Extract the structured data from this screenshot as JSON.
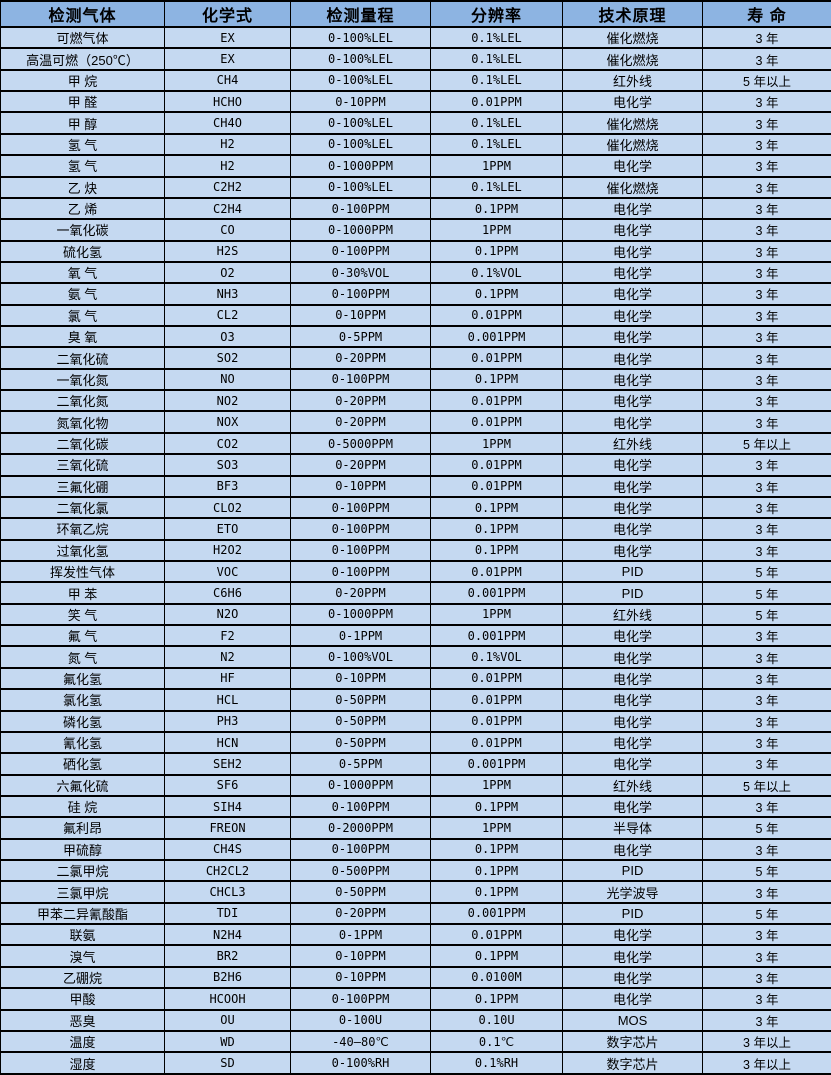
{
  "colors": {
    "header_bg": "#8db4e2",
    "row_bg": "#c5d9f1",
    "border": "#000000"
  },
  "table": {
    "headers": [
      "检测气体",
      "化学式",
      "检测量程",
      "分辨率",
      "技术原理",
      "寿 命"
    ],
    "column_keys": [
      "gas",
      "formula",
      "range",
      "resolution",
      "principle",
      "lifespan"
    ],
    "rows": [
      [
        "可燃气体",
        "EX",
        "0-100%LEL",
        "0.1%LEL",
        "催化燃烧",
        "3 年"
      ],
      [
        "高温可燃（250℃）",
        "EX",
        "0-100%LEL",
        "0.1%LEL",
        "催化燃烧",
        "3 年"
      ],
      [
        "甲 烷",
        "CH4",
        "0-100%LEL",
        "0.1%LEL",
        "红外线",
        "5 年以上"
      ],
      [
        "甲 醛",
        "HCHO",
        "0-10PPM",
        "0.01PPM",
        "电化学",
        "3 年"
      ],
      [
        "甲 醇",
        "CH4O",
        "0-100%LEL",
        "0.1%LEL",
        "催化燃烧",
        "3 年"
      ],
      [
        "氢 气",
        "H2",
        "0-100%LEL",
        "0.1%LEL",
        "催化燃烧",
        "3 年"
      ],
      [
        "氢 气",
        "H2",
        "0-1000PPM",
        "1PPM",
        "电化学",
        "3 年"
      ],
      [
        "乙 炔",
        "C2H2",
        "0-100%LEL",
        "0.1%LEL",
        "催化燃烧",
        "3 年"
      ],
      [
        "乙 烯",
        "C2H4",
        "0-100PPM",
        "0.1PPM",
        "电化学",
        "3 年"
      ],
      [
        "一氧化碳",
        "CO",
        "0-1000PPM",
        "1PPM",
        "电化学",
        "3 年"
      ],
      [
        "硫化氢",
        "H2S",
        "0-100PPM",
        "0.1PPM",
        "电化学",
        "3 年"
      ],
      [
        "氧 气",
        "O2",
        "0-30%VOL",
        "0.1%VOL",
        "电化学",
        "3 年"
      ],
      [
        "氨 气",
        "NH3",
        "0-100PPM",
        "0.1PPM",
        "电化学",
        "3 年"
      ],
      [
        "氯 气",
        "CL2",
        "0-10PPM",
        "0.01PPM",
        "电化学",
        "3 年"
      ],
      [
        "臭 氧",
        "O3",
        "0-5PPM",
        "0.001PPM",
        "电化学",
        "3 年"
      ],
      [
        "二氧化硫",
        "SO2",
        "0-20PPM",
        "0.01PPM",
        "电化学",
        "3 年"
      ],
      [
        "一氧化氮",
        "NO",
        "0-100PPM",
        "0.1PPM",
        "电化学",
        "3 年"
      ],
      [
        "二氧化氮",
        "NO2",
        "0-20PPM",
        "0.01PPM",
        "电化学",
        "3 年"
      ],
      [
        "氮氧化物",
        "NOX",
        "0-20PPM",
        "0.01PPM",
        "电化学",
        "3 年"
      ],
      [
        "二氧化碳",
        "CO2",
        "0-5000PPM",
        "1PPM",
        "红外线",
        "5 年以上"
      ],
      [
        "三氧化硫",
        "SO3",
        "0-20PPM",
        "0.01PPM",
        "电化学",
        "3 年"
      ],
      [
        "三氟化硼",
        "BF3",
        "0-10PPM",
        "0.01PPM",
        "电化学",
        "3 年"
      ],
      [
        "二氧化氯",
        "CLO2",
        "0-100PPM",
        "0.1PPM",
        "电化学",
        "3 年"
      ],
      [
        "环氧乙烷",
        "ETO",
        "0-100PPM",
        "0.1PPM",
        "电化学",
        "3 年"
      ],
      [
        "过氧化氢",
        "H2O2",
        "0-100PPM",
        "0.1PPM",
        "电化学",
        "3 年"
      ],
      [
        "挥发性气体",
        "VOC",
        "0-100PPM",
        "0.01PPM",
        "PID",
        "5 年"
      ],
      [
        "甲 苯",
        "C6H6",
        "0-20PPM",
        "0.001PPM",
        "PID",
        "5 年"
      ],
      [
        "笑 气",
        "N2O",
        "0-1000PPM",
        "1PPM",
        "红外线",
        "5 年"
      ],
      [
        "氟 气",
        "F2",
        "0-1PPM",
        "0.001PPM",
        "电化学",
        "3 年"
      ],
      [
        "氮 气",
        "N2",
        "0-100%VOL",
        "0.1%VOL",
        "电化学",
        "3 年"
      ],
      [
        "氟化氢",
        "HF",
        "0-10PPM",
        "0.01PPM",
        "电化学",
        "3 年"
      ],
      [
        "氯化氢",
        "HCL",
        "0-50PPM",
        "0.01PPM",
        "电化学",
        "3 年"
      ],
      [
        "磷化氢",
        "PH3",
        "0-50PPM",
        "0.01PPM",
        "电化学",
        "3 年"
      ],
      [
        "氰化氢",
        "HCN",
        "0-50PPM",
        "0.01PPM",
        "电化学",
        "3 年"
      ],
      [
        "硒化氢",
        "SEH2",
        "0-5PPM",
        "0.001PPM",
        "电化学",
        "3 年"
      ],
      [
        "六氟化硫",
        "SF6",
        "0-1000PPM",
        "1PPM",
        "红外线",
        "5 年以上"
      ],
      [
        "硅 烷",
        "SIH4",
        "0-100PPM",
        "0.1PPM",
        "电化学",
        "3 年"
      ],
      [
        "氟利昂",
        "FREON",
        "0-2000PPM",
        "1PPM",
        "半导体",
        "5 年"
      ],
      [
        "甲硫醇",
        "CH4S",
        "0-100PPM",
        "0.1PPM",
        "电化学",
        "3 年"
      ],
      [
        "二氯甲烷",
        "CH2CL2",
        "0-500PPM",
        "0.1PPM",
        "PID",
        "5 年"
      ],
      [
        "三氯甲烷",
        "CHCL3",
        "0-50PPM",
        "0.1PPM",
        "光学波导",
        "3 年"
      ],
      [
        "甲苯二异氰酸酯",
        "TDI",
        "0-20PPM",
        "0.001PPM",
        "PID",
        "5 年"
      ],
      [
        "联氨",
        "N2H4",
        "0-1PPM",
        "0.01PPM",
        "电化学",
        "3 年"
      ],
      [
        "溴气",
        "BR2",
        "0-10PPM",
        "0.1PPM",
        "电化学",
        "3 年"
      ],
      [
        "乙硼烷",
        "B2H6",
        "0-10PPM",
        "0.0100M",
        "电化学",
        "3 年"
      ],
      [
        "甲酸",
        "HCOOH",
        "0-100PPM",
        "0.1PPM",
        "电化学",
        "3 年"
      ],
      [
        "恶臭",
        "OU",
        "0-100U",
        "0.10U",
        "MOS",
        "3 年"
      ],
      [
        "温度",
        "WD",
        "-40—80℃",
        "0.1℃",
        "数字芯片",
        "3 年以上"
      ],
      [
        "湿度",
        "SD",
        "0-100%RH",
        "0.1%RH",
        "数字芯片",
        "3 年以上"
      ]
    ]
  }
}
